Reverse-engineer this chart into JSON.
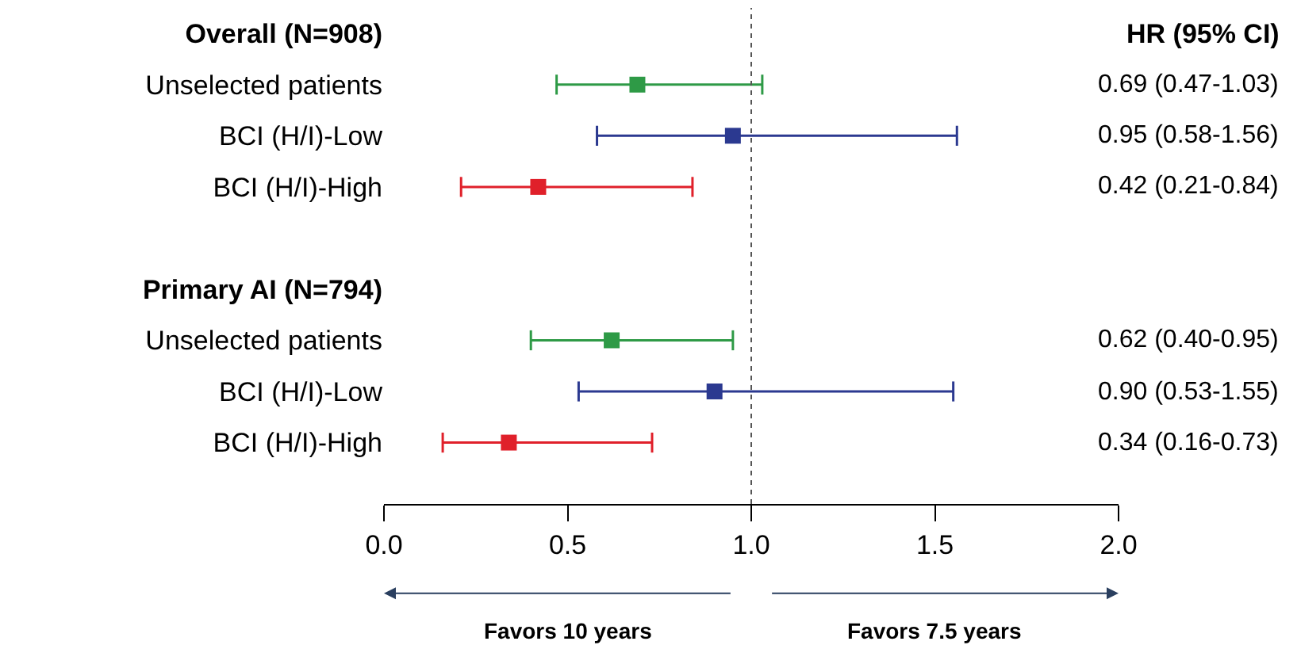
{
  "chart_data": {
    "type": "scatter",
    "orientation": "horizontal",
    "categories": [
      "Overall (N=908)",
      "Unselected patients",
      "BCI (H/I)-Low",
      "BCI (H/I)-High",
      null,
      "Primary AI (N=794)",
      "Unselected patients",
      "BCI (H/I)-Low",
      "BCI (H/I)-High"
    ],
    "values": [
      null,
      0.69,
      0.95,
      0.42,
      null,
      null,
      0.62,
      0.9,
      0.34
    ],
    "errors": [
      null,
      [
        0.47,
        1.03
      ],
      [
        0.58,
        1.56
      ],
      [
        0.21,
        0.84
      ],
      null,
      null,
      [
        0.4,
        0.95
      ],
      [
        0.53,
        1.55
      ],
      [
        0.16,
        0.73
      ]
    ],
    "colors": [
      "#000000",
      "#2e9a46",
      "#2b3990",
      "#e0202a",
      "#000000",
      "#000000",
      "#2e9a46",
      "#2b3990",
      "#e0202a"
    ],
    "value_labels": [
      null,
      "0.69 (0.47-1.03)",
      "0.95 (0.58-1.56)",
      "0.42 (0.21-0.84)",
      null,
      null,
      "0.62 (0.40-0.95)",
      "0.90 (0.53-1.55)",
      "0.34 (0.16-0.73)"
    ],
    "xlim": [
      0,
      2
    ],
    "xticks": [
      {
        "value": 0,
        "label": "0.0"
      },
      {
        "value": 0.5,
        "label": "0.5"
      },
      {
        "value": 1,
        "label": "1.0"
      },
      {
        "value": 1.5,
        "label": "1.5"
      },
      {
        "value": 2,
        "label": "2.0"
      }
    ],
    "ref_lines": [
      {
        "axis": "x",
        "value": 1,
        "line_style": "dotted",
        "color": "#555555"
      }
    ],
    "annotations": [
      "HR (95% CI)",
      "Favors 10 years",
      "Favors 7.5 years"
    ],
    "marker": "square"
  }
}
